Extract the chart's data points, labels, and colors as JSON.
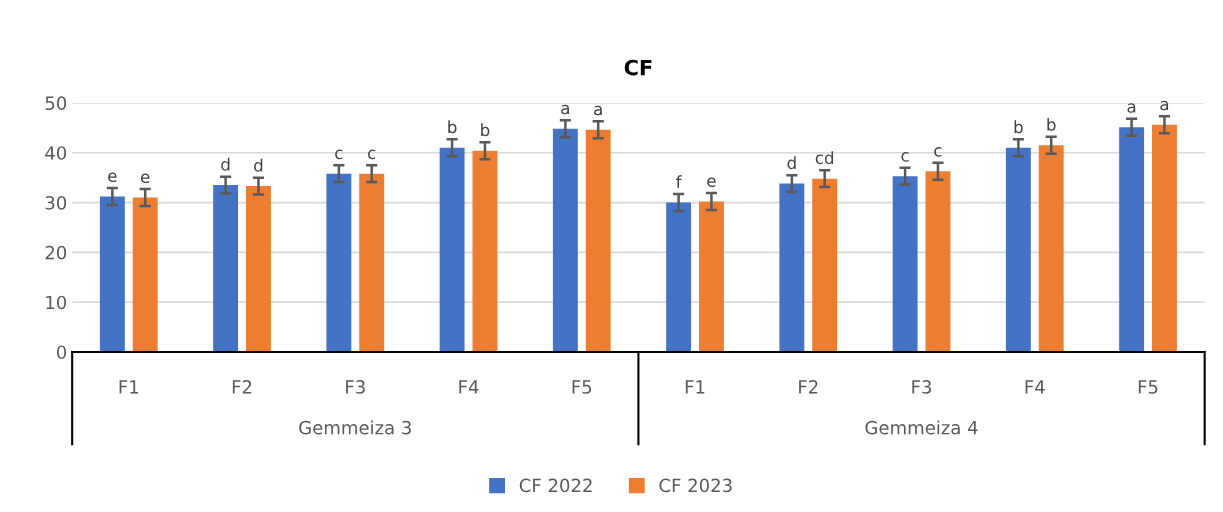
{
  "chart_data": {
    "type": "bar",
    "title": "CF",
    "categories": [
      "F1",
      "F2",
      "F3",
      "F4",
      "F5",
      "F1",
      "F2",
      "F3",
      "F4",
      "F5"
    ],
    "series": [
      {
        "name": "CF 2022",
        "color": "#4472c4",
        "values": [
          31.2,
          33.5,
          35.8,
          41.0,
          44.8,
          30.0,
          33.8,
          35.3,
          41.0,
          45.1
        ],
        "errors": [
          1.7,
          1.7,
          1.7,
          1.7,
          1.7,
          1.7,
          1.7,
          1.7,
          1.7,
          1.7
        ],
        "value_labels": [
          "e",
          "d",
          "c",
          "b",
          "a",
          "f",
          "d",
          "c",
          "b",
          "a"
        ]
      },
      {
        "name": "CF 2023",
        "color": "#ed7d31",
        "values": [
          31.0,
          33.3,
          35.8,
          40.4,
          44.6,
          30.2,
          34.8,
          36.3,
          41.5,
          45.6
        ],
        "errors": [
          1.7,
          1.7,
          1.7,
          1.7,
          1.7,
          1.7,
          1.7,
          1.7,
          1.7,
          1.7
        ],
        "value_labels": [
          "e",
          "d",
          "c",
          "b",
          "a",
          "e",
          "cd",
          "c",
          "b",
          "a"
        ]
      }
    ],
    "annotations": [
      "Gemmeiza 3",
      "Gemmeiza 4"
    ],
    "ylim": [
      0,
      50
    ],
    "yticks": [
      0,
      10,
      20,
      30,
      40,
      50
    ],
    "grid": "y",
    "legend": "bottom"
  }
}
